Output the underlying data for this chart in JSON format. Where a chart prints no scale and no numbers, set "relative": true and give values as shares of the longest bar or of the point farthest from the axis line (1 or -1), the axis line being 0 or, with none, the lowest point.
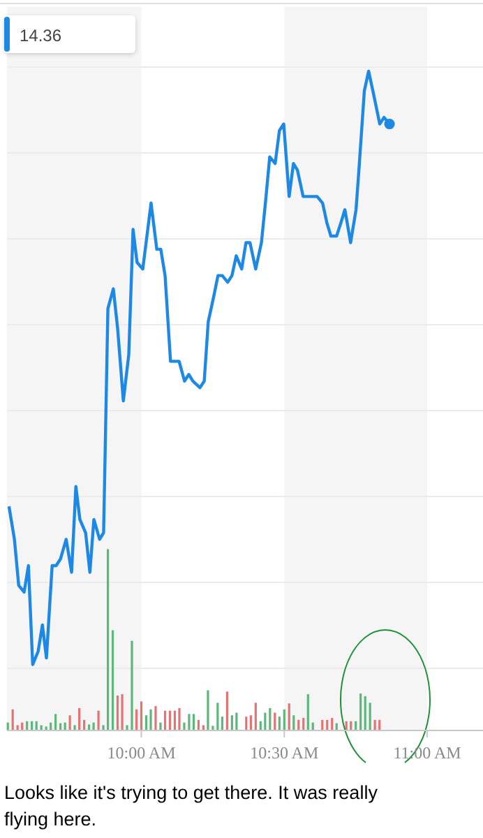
{
  "chart_data": {
    "type": "line",
    "relative": true,
    "grid": true,
    "xlim": [
      9.53,
      11.2
    ],
    "xticks": [
      {
        "value": 10,
        "label": "10:00 AM"
      },
      {
        "value": 10.5,
        "label": "10:30 AM"
      },
      {
        "value": 11,
        "label": "11:00 AM"
      }
    ],
    "bands": [
      {
        "axis": "x",
        "from": 9.53,
        "to": 10,
        "color": "#f5f5f5"
      },
      {
        "axis": "x",
        "from": 10.5,
        "to": 11,
        "color": "#f5f5f5"
      }
    ],
    "series": [
      {
        "color": "#1e88e5",
        "x": [
          9.537,
          9.556,
          9.571,
          9.59,
          9.605,
          9.62,
          9.639,
          9.654,
          9.668,
          9.688,
          9.702,
          9.717,
          9.737,
          9.756,
          9.771,
          9.785,
          9.805,
          9.82,
          9.834,
          9.854,
          9.868,
          9.883,
          9.902,
          9.917,
          9.937,
          9.956,
          9.971,
          9.985,
          10.005,
          10.034,
          10.054,
          10.068,
          10.083,
          10.102,
          10.117,
          10.132,
          10.151,
          10.166,
          10.18,
          10.205,
          10.22,
          10.234,
          10.254,
          10.268,
          10.283,
          10.302,
          10.317,
          10.332,
          10.351,
          10.366,
          10.38,
          10.4,
          10.42,
          10.434,
          10.449,
          10.468,
          10.483,
          10.498,
          10.517,
          10.532,
          10.546,
          10.566,
          10.595,
          10.615,
          10.634,
          10.649,
          10.663,
          10.683,
          10.698,
          10.712,
          10.732,
          10.751,
          10.761,
          10.78,
          10.795,
          10.81,
          10.834,
          10.849,
          10.868
        ],
        "values": [
          0.34,
          0.29,
          0.22,
          0.21,
          0.25,
          0.1,
          0.12,
          0.16,
          0.11,
          0.25,
          0.25,
          0.26,
          0.29,
          0.24,
          0.37,
          0.32,
          0.3,
          0.24,
          0.32,
          0.29,
          0.3,
          0.64,
          0.67,
          0.61,
          0.5,
          0.57,
          0.76,
          0.71,
          0.7,
          0.8,
          0.73,
          0.73,
          0.69,
          0.56,
          0.56,
          0.56,
          0.53,
          0.54,
          0.53,
          0.52,
          0.53,
          0.62,
          0.66,
          0.69,
          0.69,
          0.68,
          0.69,
          0.72,
          0.7,
          0.74,
          0.74,
          0.7,
          0.74,
          0.8,
          0.87,
          0.86,
          0.91,
          0.92,
          0.81,
          0.86,
          0.85,
          0.81,
          0.81,
          0.81,
          0.8,
          0.77,
          0.75,
          0.75,
          0.77,
          0.79,
          0.74,
          0.79,
          0.85,
          0.97,
          1,
          0.97,
          0.92,
          0.93,
          0.92
        ]
      },
      {
        "type": "bar",
        "x": [
          9.533,
          9.55,
          9.567,
          9.583,
          9.6,
          9.617,
          9.633,
          9.65,
          9.667,
          9.683,
          9.7,
          9.717,
          9.733,
          9.75,
          9.767,
          9.783,
          9.8,
          9.817,
          9.833,
          9.85,
          9.867,
          9.883,
          9.9,
          9.917,
          9.933,
          9.95,
          9.967,
          9.983,
          10,
          10.017,
          10.033,
          10.05,
          10.067,
          10.083,
          10.1,
          10.117,
          10.133,
          10.15,
          10.167,
          10.183,
          10.2,
          10.217,
          10.233,
          10.25,
          10.267,
          10.283,
          10.3,
          10.317,
          10.333,
          10.367,
          10.383,
          10.4,
          10.417,
          10.433,
          10.45,
          10.467,
          10.483,
          10.5,
          10.517,
          10.533,
          10.55,
          10.567,
          10.583,
          10.6,
          10.633,
          10.65,
          10.667,
          10.683,
          10.717,
          10.733,
          10.75,
          10.767,
          10.783,
          10.8,
          10.817,
          10.833
        ],
        "values": [
          0.012,
          0.032,
          0.008,
          0.012,
          0.014,
          0.014,
          0.014,
          0.008,
          0.006,
          0.012,
          0.025,
          0.011,
          0.012,
          0.023,
          0.008,
          0.034,
          0.016,
          0.009,
          0.012,
          0.03,
          0.008,
          0.275,
          0.152,
          0.053,
          0.055,
          0.008,
          0.136,
          0.032,
          0.044,
          0.023,
          0.032,
          0.037,
          0.012,
          0.03,
          0.03,
          0.03,
          0.034,
          0.012,
          0.025,
          0.025,
          0.016,
          0.008,
          0.061,
          0.007,
          0.042,
          0.021,
          0.059,
          0.023,
          0.027,
          0.021,
          0.023,
          0.042,
          0.014,
          0.027,
          0.034,
          0.027,
          0.021,
          0.032,
          0.041,
          0.023,
          0.016,
          0.019,
          0.055,
          0.012,
          0.016,
          0.016,
          0.019,
          0.011,
          0.014,
          0.014,
          0.014,
          0.056,
          0.052,
          0.042,
          0.016,
          0.016
        ],
        "colors": [
          "#5cb87a",
          "#e57373",
          "#e57373",
          "#e57373",
          "#5cb87a",
          "#5cb87a",
          "#5cb87a",
          "#5cb87a",
          "#5cb87a",
          "#5cb87a",
          "#5cb87a",
          "#5cb87a",
          "#5cb87a",
          "#e57373",
          "#5cb87a",
          "#e57373",
          "#e57373",
          "#5cb87a",
          "#5cb87a",
          "#e57373",
          "#5cb87a",
          "#5cb87a",
          "#5cb87a",
          "#e57373",
          "#e57373",
          "#5cb87a",
          "#5cb87a",
          "#e57373",
          "#e57373",
          "#5cb87a",
          "#5cb87a",
          "#e57373",
          "#5cb87a",
          "#e57373",
          "#e57373",
          "#e57373",
          "#e57373",
          "#5cb87a",
          "#5cb87a",
          "#5cb87a",
          "#e57373",
          "#e57373",
          "#5cb87a",
          "#5cb87a",
          "#5cb87a",
          "#5cb87a",
          "#e57373",
          "#5cb87a",
          "#5cb87a",
          "#e57373",
          "#e57373",
          "#e57373",
          "#5cb87a",
          "#5cb87a",
          "#5cb87a",
          "#e57373",
          "#5cb87a",
          "#5cb87a",
          "#e57373",
          "#5cb87a",
          "#e57373",
          "#e57373",
          "#5cb87a",
          "#5cb87a",
          "#e57373",
          "#e57373",
          "#e57373",
          "#5cb87a",
          "#e57373",
          "#e57373",
          "#5cb87a",
          "#5cb87a",
          "#5cb87a",
          "#5cb87a",
          "#e57373",
          "#e57373"
        ]
      }
    ],
    "annotations": [
      "14.36",
      "Looks like it's trying to get there. It was really flying here."
    ]
  }
}
